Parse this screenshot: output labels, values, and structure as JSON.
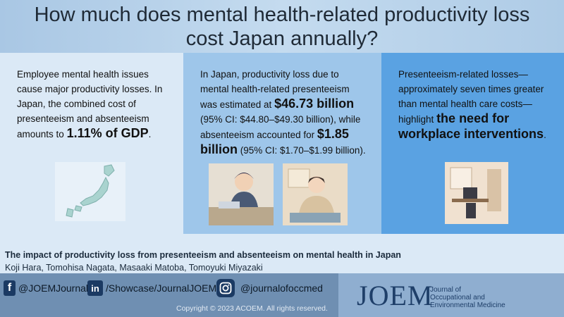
{
  "title": "How much does mental health-related productivity loss cost Japan annually?",
  "panel1": {
    "text": "Employee mental health issues cause major productivity losses. In Japan, the combined cost of presenteeism and absenteeism amounts to",
    "highlight": "1.11% of GDP",
    "end": "."
  },
  "panel2": {
    "text1": "In Japan, productivity loss due to mental health-related presenteeism was estimated at",
    "value1": "$46.73 billion",
    "ci1": "(95% CI: $44.80–$49.30 billion), while absenteeism accounted for",
    "value2": "$1.85 billion",
    "ci2": "(95% CI: $1.70–$1.99 billion)."
  },
  "panel3": {
    "text": "Presenteeism-related losses—approximately seven times greater than mental health care costs—highlight",
    "highlight": "the need for workplace interventions",
    "end": "."
  },
  "citation": {
    "title": "The impact of productivity loss from presenteeism and absenteeism on mental health in Japan",
    "authors": "Koji Hara, Tomohisa Nagata, Masaaki Matoba, Tomoyuki Miyazaki"
  },
  "footer": {
    "facebook": "@JOEMJournal",
    "linkedin": "/Showcase/JournalJOEM",
    "instagram": "@journalofoccmed",
    "copyright": "Copyright © 2023 ACOEM. All rights reserved.",
    "logo": "JOEM",
    "journal_line1": "Journal of",
    "journal_line2": "Occupational and",
    "journal_line3": "Environmental Medicine"
  }
}
